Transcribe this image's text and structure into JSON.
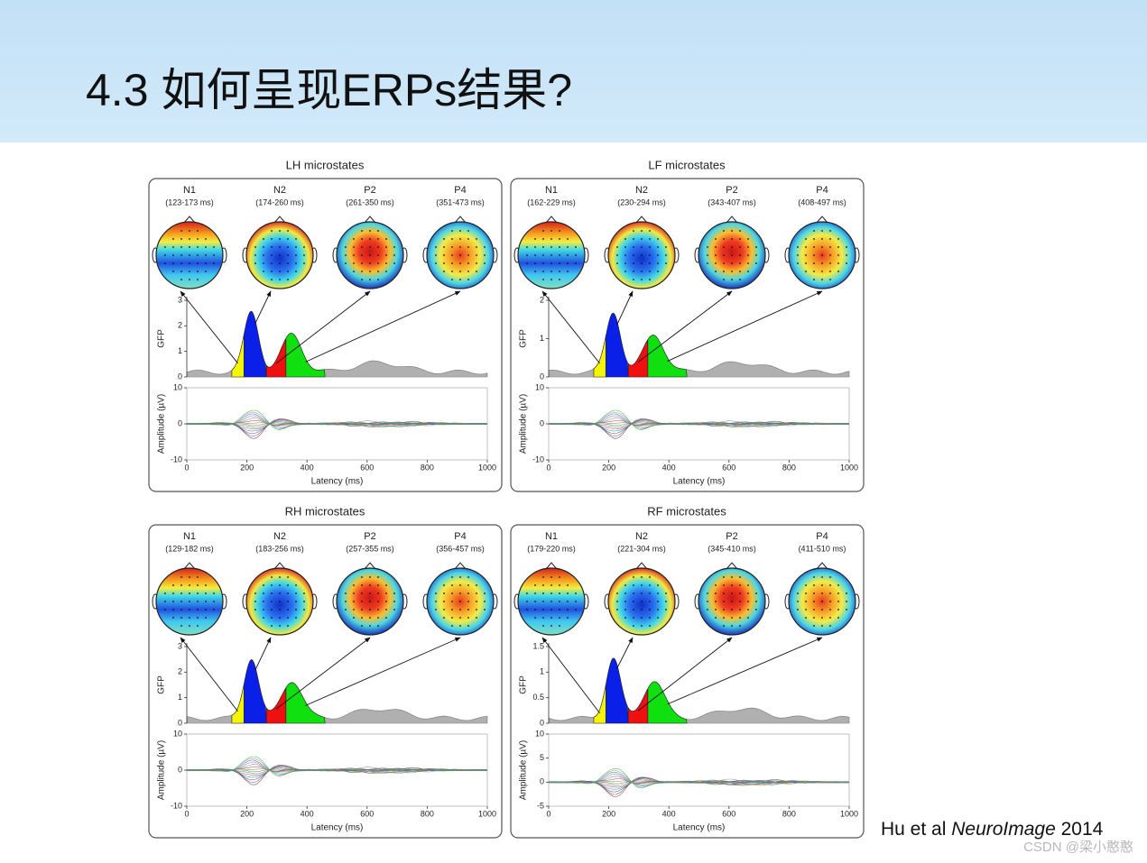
{
  "header": {
    "title": "4.3 如何呈现ERPs结果?"
  },
  "figure": {
    "panels": [
      {
        "title": "LH microstates",
        "states": [
          {
            "name": "N1",
            "range": "(123-173 ms)"
          },
          {
            "name": "N2",
            "range": "(174-260 ms)"
          },
          {
            "name": "P2",
            "range": "(261-350 ms)"
          },
          {
            "name": "P4",
            "range": "(351-473 ms)"
          }
        ],
        "gfp_label": "GFP",
        "gfp_yticks": [
          0,
          1,
          2,
          3
        ],
        "amp_label": "Amplitude (µV)",
        "amp_yticks": [
          -10,
          0,
          10
        ],
        "xticks": [
          0,
          200,
          400,
          600,
          800,
          1000
        ],
        "x_label": "Latency (ms)"
      },
      {
        "title": "LF microstates",
        "states": [
          {
            "name": "N1",
            "range": "(162-229 ms)"
          },
          {
            "name": "N2",
            "range": "(230-294 ms)"
          },
          {
            "name": "P2",
            "range": "(343-407 ms)"
          },
          {
            "name": "P4",
            "range": "(408-497 ms)"
          }
        ],
        "gfp_label": "GFP",
        "gfp_yticks": [
          0,
          1,
          2
        ],
        "amp_label": "Amplitude (µV)",
        "amp_yticks": [
          -10,
          0,
          10
        ],
        "xticks": [
          0,
          200,
          400,
          600,
          800,
          1000
        ],
        "x_label": "Latency (ms)"
      },
      {
        "title": "RH microstates",
        "states": [
          {
            "name": "N1",
            "range": "(129-182 ms)"
          },
          {
            "name": "N2",
            "range": "(183-256 ms)"
          },
          {
            "name": "P2",
            "range": "(257-355 ms)"
          },
          {
            "name": "P4",
            "range": "(356-457 ms)"
          }
        ],
        "gfp_label": "GFP",
        "gfp_yticks": [
          0,
          1,
          2,
          3
        ],
        "amp_label": "Amplitude (µV)",
        "amp_yticks": [
          -10,
          0,
          10
        ],
        "xticks": [
          0,
          200,
          400,
          600,
          800,
          1000
        ],
        "x_label": "Latency (ms)"
      },
      {
        "title": "RF microstates",
        "states": [
          {
            "name": "N1",
            "range": "(179-220 ms)"
          },
          {
            "name": "N2",
            "range": "(221-304 ms)"
          },
          {
            "name": "P2",
            "range": "(345-410 ms)"
          },
          {
            "name": "P4",
            "range": "(411-510 ms)"
          }
        ],
        "gfp_label": "GFP",
        "gfp_yticks": [
          0,
          0.5,
          1,
          1.5
        ],
        "amp_label": "Amplitude (µV)",
        "amp_yticks": [
          -5,
          0,
          5,
          10
        ],
        "xticks": [
          0,
          200,
          400,
          600,
          800,
          1000
        ],
        "x_label": "Latency (ms)"
      }
    ]
  },
  "citation": {
    "authors": "Hu et al",
    "journal": "NeuroImage",
    "year": "2014"
  },
  "watermark": "CSDN @梁小憨憨"
}
